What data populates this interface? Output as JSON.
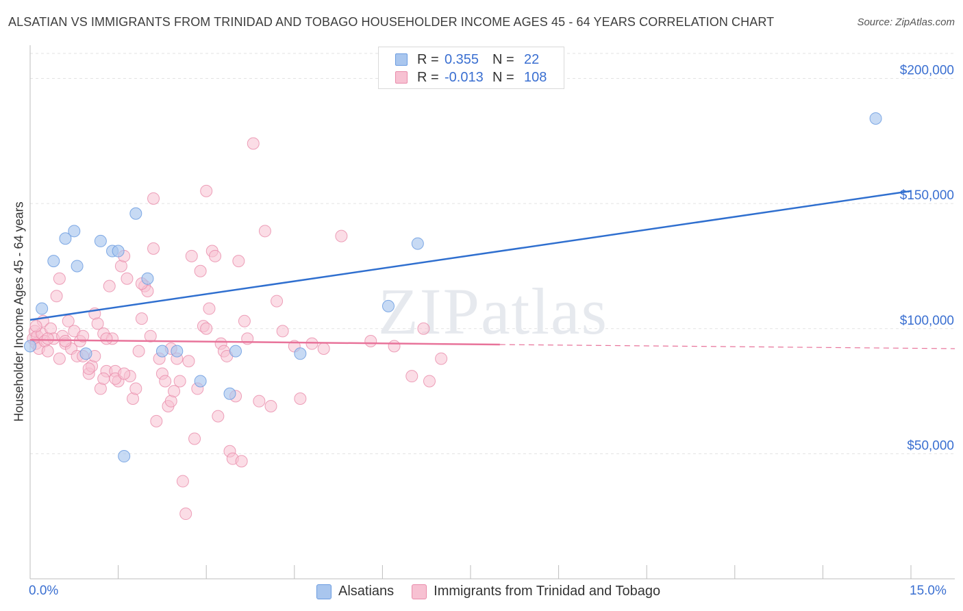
{
  "title": "ALSATIAN VS IMMIGRANTS FROM TRINIDAD AND TOBAGO HOUSEHOLDER INCOME AGES 45 - 64 YEARS CORRELATION CHART",
  "source": "Source: ZipAtlas.com",
  "watermark": "ZIPatlas",
  "legend": {
    "rows": [
      {
        "r_label": "R =",
        "r_value": "0.355",
        "n_label": "N =",
        "n_value": "22",
        "color": "#a9c6ee",
        "border": "#6a9be0"
      },
      {
        "r_label": "R =",
        "r_value": "-0.013",
        "n_label": "N =",
        "n_value": "108",
        "color": "#f7c1d2",
        "border": "#e98aa9"
      }
    ]
  },
  "chart_data": {
    "type": "scatter",
    "title": "ALSATIAN VS IMMIGRANTS FROM TRINIDAD AND TOBAGO HOUSEHOLDER INCOME AGES 45 - 64 YEARS CORRELATION CHART",
    "xlabel": "",
    "ylabel": "Householder Income Ages 45 - 64 years",
    "xlim": [
      0,
      15
    ],
    "ylim": [
      0,
      210000
    ],
    "x_tick_labels": [
      "0.0%",
      "15.0%"
    ],
    "y_ticks": [
      50000,
      100000,
      150000,
      200000
    ],
    "y_tick_labels": [
      "$50,000",
      "$100,000",
      "$150,000",
      "$200,000"
    ],
    "grid": true,
    "legend_position": "top-center",
    "series": [
      {
        "name": "Alsatians",
        "color": "#6a9be0",
        "fill": "#a9c6ee",
        "trend": {
          "x": [
            0,
            15
          ],
          "y": [
            103500,
            155000
          ],
          "style": "solid"
        },
        "points": [
          [
            0.0,
            93000
          ],
          [
            0.2,
            108000
          ],
          [
            0.4,
            127000
          ],
          [
            0.6,
            136000
          ],
          [
            0.75,
            139000
          ],
          [
            0.8,
            125000
          ],
          [
            0.95,
            90000
          ],
          [
            1.2,
            135000
          ],
          [
            1.4,
            131000
          ],
          [
            1.5,
            131000
          ],
          [
            1.6,
            49000
          ],
          [
            1.8,
            146000
          ],
          [
            2.0,
            120000
          ],
          [
            2.25,
            91000
          ],
          [
            2.5,
            91000
          ],
          [
            2.9,
            79000
          ],
          [
            3.4,
            74000
          ],
          [
            3.5,
            91000
          ],
          [
            4.6,
            90000
          ],
          [
            6.1,
            109000
          ],
          [
            6.6,
            134000
          ],
          [
            14.4,
            184000
          ]
        ]
      },
      {
        "name": "Immigrants from Trinidad and Tobago",
        "color": "#e98aa9",
        "fill": "#f7c1d2",
        "trend": {
          "x": [
            0,
            15
          ],
          "y": [
            95500,
            92000
          ],
          "style": "solid-then-dashed",
          "solid_until_x": 8.0
        },
        "points": [
          [
            0.05,
            96000
          ],
          [
            0.08,
            99000
          ],
          [
            0.1,
            94000
          ],
          [
            0.12,
            97000
          ],
          [
            0.15,
            92000
          ],
          [
            0.2,
            98000
          ],
          [
            0.22,
            103000
          ],
          [
            0.25,
            95000
          ],
          [
            0.3,
            91000
          ],
          [
            0.35,
            100000
          ],
          [
            0.4,
            96000
          ],
          [
            0.45,
            113000
          ],
          [
            0.5,
            88000
          ],
          [
            0.55,
            97000
          ],
          [
            0.6,
            94000
          ],
          [
            0.65,
            103000
          ],
          [
            0.7,
            92000
          ],
          [
            0.75,
            99000
          ],
          [
            0.8,
            89000
          ],
          [
            0.85,
            95000
          ],
          [
            0.9,
            97000
          ],
          [
            1.0,
            82000
          ],
          [
            1.05,
            85000
          ],
          [
            1.1,
            106000
          ],
          [
            1.15,
            102000
          ],
          [
            1.2,
            76000
          ],
          [
            1.25,
            98000
          ],
          [
            1.3,
            83000
          ],
          [
            1.35,
            117000
          ],
          [
            1.4,
            96000
          ],
          [
            1.45,
            83000
          ],
          [
            1.5,
            79000
          ],
          [
            1.55,
            125000
          ],
          [
            1.6,
            129000
          ],
          [
            1.65,
            120000
          ],
          [
            1.7,
            81000
          ],
          [
            1.75,
            72000
          ],
          [
            1.8,
            76000
          ],
          [
            1.85,
            91000
          ],
          [
            1.9,
            104000
          ],
          [
            1.95,
            117000
          ],
          [
            2.0,
            115000
          ],
          [
            2.05,
            97000
          ],
          [
            2.1,
            152000
          ],
          [
            2.15,
            63000
          ],
          [
            2.2,
            88000
          ],
          [
            2.25,
            82000
          ],
          [
            2.3,
            79000
          ],
          [
            2.35,
            69000
          ],
          [
            2.4,
            71000
          ],
          [
            2.45,
            75000
          ],
          [
            2.5,
            88000
          ],
          [
            2.55,
            79000
          ],
          [
            2.6,
            39000
          ],
          [
            2.65,
            26000
          ],
          [
            2.7,
            87000
          ],
          [
            2.75,
            129000
          ],
          [
            2.8,
            56000
          ],
          [
            2.85,
            76000
          ],
          [
            2.9,
            123000
          ],
          [
            2.95,
            101000
          ],
          [
            3.0,
            100000
          ],
          [
            3.05,
            108000
          ],
          [
            3.1,
            131000
          ],
          [
            3.15,
            129000
          ],
          [
            3.2,
            65000
          ],
          [
            3.25,
            94000
          ],
          [
            3.3,
            91000
          ],
          [
            3.35,
            89000
          ],
          [
            3.4,
            51000
          ],
          [
            3.45,
            48000
          ],
          [
            3.5,
            73000
          ],
          [
            3.55,
            127000
          ],
          [
            3.6,
            47000
          ],
          [
            3.65,
            103000
          ],
          [
            3.7,
            96000
          ],
          [
            3.8,
            174000
          ],
          [
            3.9,
            71000
          ],
          [
            4.0,
            139000
          ],
          [
            4.1,
            69000
          ],
          [
            4.2,
            111000
          ],
          [
            4.3,
            99000
          ],
          [
            4.5,
            93000
          ],
          [
            4.6,
            72000
          ],
          [
            4.8,
            94000
          ],
          [
            5.0,
            92000
          ],
          [
            5.3,
            137000
          ],
          [
            1.0,
            84000
          ],
          [
            1.25,
            80000
          ],
          [
            1.45,
            80000
          ],
          [
            0.1,
            101000
          ],
          [
            0.9,
            89000
          ],
          [
            0.3,
            96000
          ],
          [
            0.6,
            95000
          ],
          [
            1.1,
            89000
          ],
          [
            1.6,
            82000
          ],
          [
            1.9,
            118000
          ],
          [
            2.4,
            92000
          ],
          [
            3.0,
            155000
          ],
          [
            5.8,
            95000
          ],
          [
            6.2,
            93000
          ],
          [
            6.5,
            81000
          ],
          [
            6.8,
            79000
          ],
          [
            6.7,
            100000
          ],
          [
            7.0,
            88000
          ],
          [
            2.1,
            132000
          ],
          [
            1.3,
            96000
          ],
          [
            0.5,
            120000
          ]
        ]
      }
    ]
  }
}
